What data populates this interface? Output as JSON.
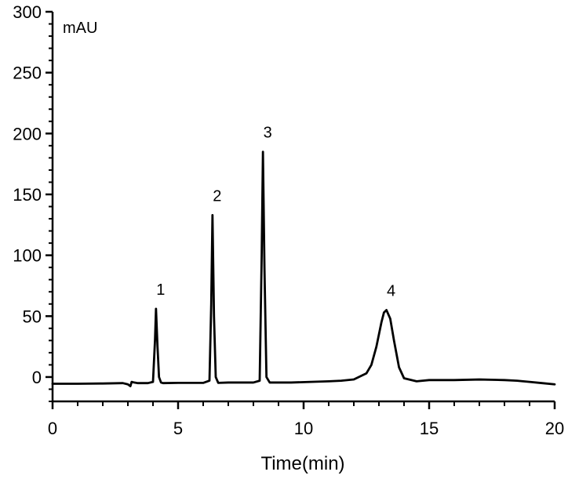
{
  "chart_data": {
    "type": "line",
    "title": "",
    "xlabel": "Time(min)",
    "ylabel": "mAU",
    "xlim": [
      0,
      20
    ],
    "ylim": [
      -20,
      300
    ],
    "x_ticks": [
      0,
      5,
      10,
      15,
      20
    ],
    "y_ticks": [
      0,
      50,
      100,
      150,
      200,
      250,
      300
    ],
    "grid": false,
    "legend": "none",
    "colors": {
      "line": "#000000",
      "axis": "#000000"
    },
    "series": [
      {
        "x": [
          0,
          1.0,
          2.0,
          2.8,
          3.0,
          3.1,
          3.15,
          3.25,
          3.4,
          3.8,
          4.0,
          4.08,
          4.12,
          4.18,
          4.24,
          4.32,
          4.4,
          5.0,
          6.0,
          6.25,
          6.32,
          6.37,
          6.43,
          6.5,
          6.6,
          7.0,
          8.0,
          8.25,
          8.33,
          8.38,
          8.44,
          8.52,
          8.65,
          9.5,
          11.0,
          11.5,
          12.0,
          12.5,
          12.7,
          12.9,
          13.1,
          13.2,
          13.3,
          13.45,
          13.6,
          13.8,
          14.0,
          14.5,
          15.0,
          16.0,
          17.0,
          18.0,
          18.5,
          19.0,
          19.5,
          20.0
        ],
        "y": [
          -5.5,
          -5.5,
          -5.3,
          -5.0,
          -6.0,
          -7.5,
          -4.0,
          -4.5,
          -5.0,
          -5.0,
          -4.0,
          30.0,
          56.0,
          25.0,
          0.0,
          -4.5,
          -5.0,
          -4.8,
          -4.8,
          -3.0,
          60.0,
          133.0,
          50.0,
          0.0,
          -4.8,
          -4.5,
          -4.5,
          -3.0,
          100.0,
          185.0,
          90.0,
          0.0,
          -4.5,
          -4.5,
          -3.5,
          -3.0,
          -2.0,
          3.0,
          10.0,
          25.0,
          45.0,
          53.0,
          55.0,
          48.0,
          30.0,
          8.0,
          -1.0,
          -3.5,
          -2.5,
          -2.5,
          -2.0,
          -2.5,
          -3.0,
          -4.0,
          -5.0,
          -6.0
        ]
      }
    ],
    "annotations": [
      {
        "text": "1",
        "x": 4.12,
        "y": 56
      },
      {
        "text": "2",
        "x": 6.37,
        "y": 133
      },
      {
        "text": "3",
        "x": 8.38,
        "y": 185
      },
      {
        "text": "4",
        "x": 13.3,
        "y": 55
      }
    ]
  }
}
